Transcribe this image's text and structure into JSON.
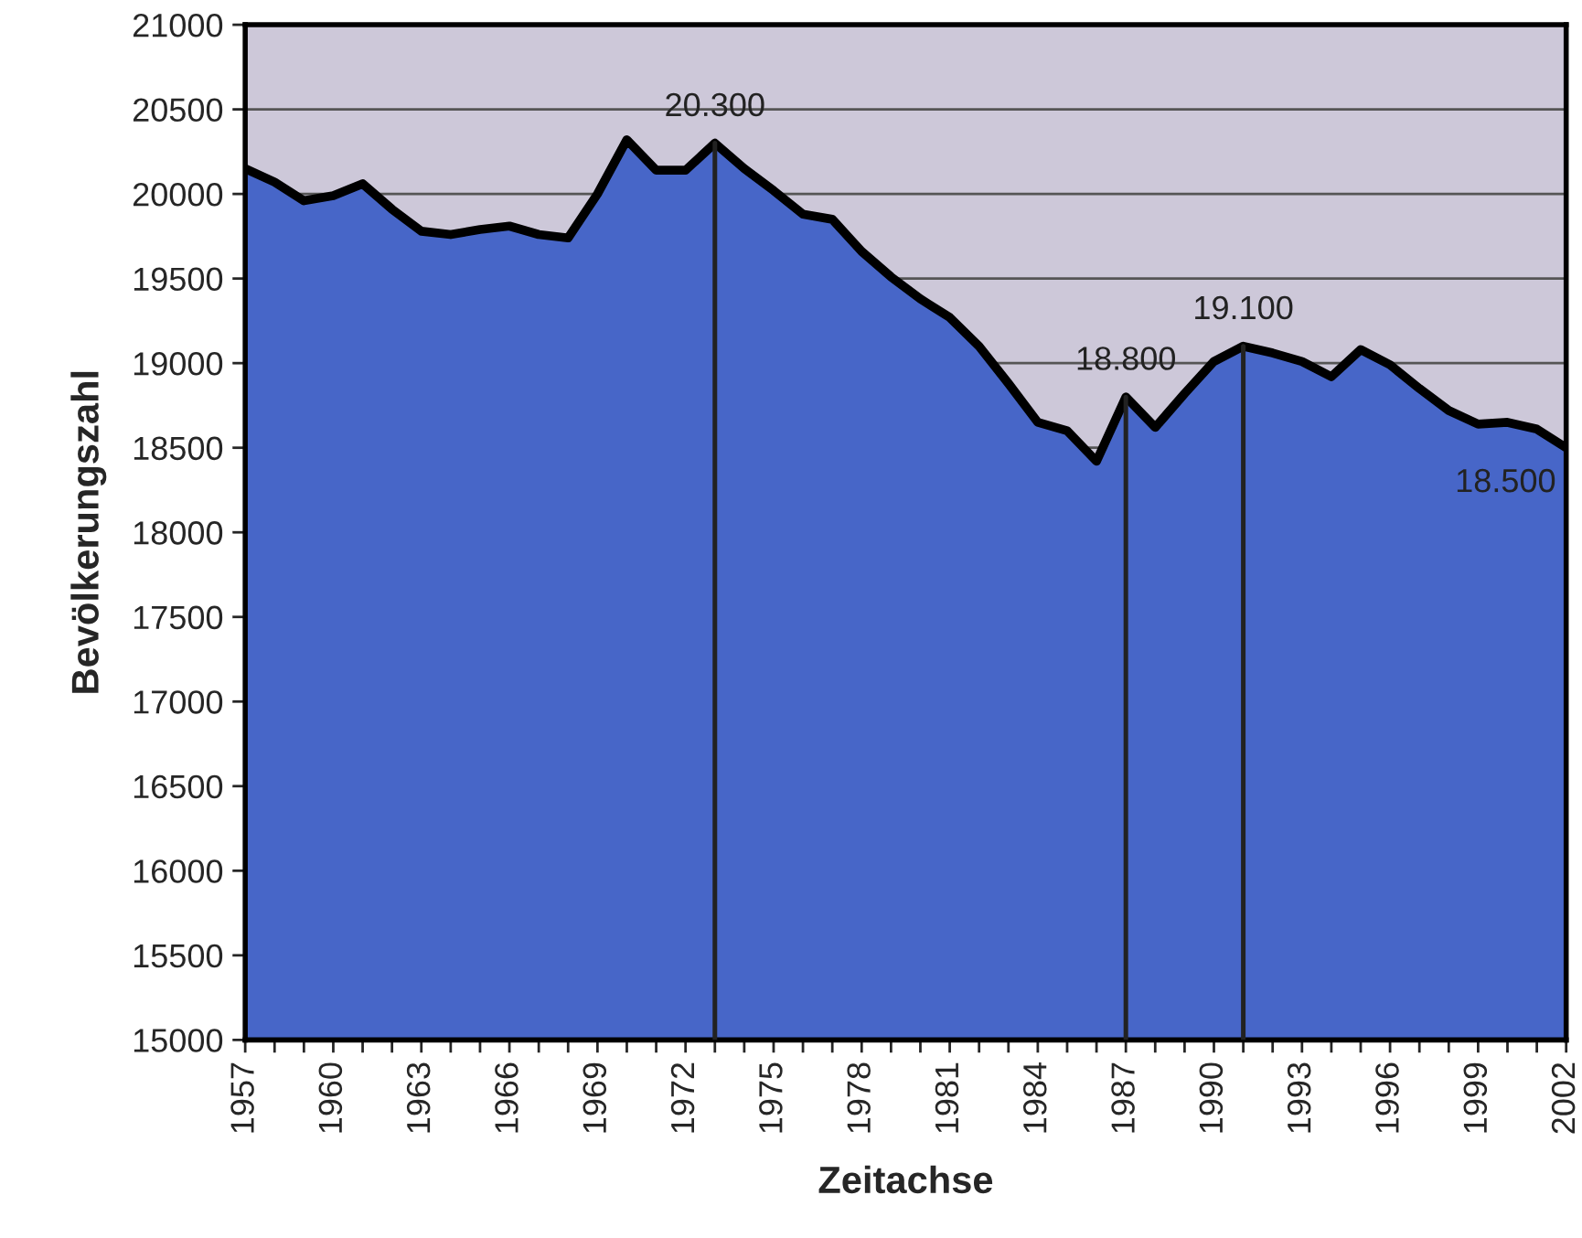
{
  "chart_data": {
    "type": "area",
    "xlabel": "Zeitachse",
    "ylabel": "Bevölkerungszahl",
    "x": [
      1957,
      1958,
      1959,
      1960,
      1961,
      1962,
      1963,
      1964,
      1965,
      1966,
      1967,
      1968,
      1969,
      1970,
      1971,
      1972,
      1973,
      1974,
      1975,
      1976,
      1977,
      1978,
      1979,
      1980,
      1981,
      1982,
      1983,
      1984,
      1985,
      1986,
      1987,
      1988,
      1989,
      1990,
      1991,
      1992,
      1993,
      1994,
      1995,
      1996,
      1997,
      1998,
      1999,
      2000,
      2001,
      2002
    ],
    "series": [
      {
        "color": "#4766c8",
        "values": [
          20150,
          20070,
          19960,
          19990,
          20060,
          19910,
          19780,
          19760,
          19790,
          19810,
          19760,
          19740,
          20000,
          20320,
          20140,
          20140,
          20300,
          20150,
          20020,
          19880,
          19850,
          19660,
          19510,
          19380,
          19270,
          19100,
          18880,
          18650,
          18600,
          18420,
          18800,
          18620,
          18820,
          19010,
          19100,
          19060,
          19010,
          18920,
          19080,
          18990,
          18850,
          18720,
          18640,
          18650,
          18610,
          18500
        ]
      }
    ],
    "xlim": [
      1957,
      2002
    ],
    "xticks": [
      1957,
      {
        "value": 1958,
        "label": null
      },
      {
        "value": 1959,
        "label": null
      },
      1960,
      {
        "value": 1961,
        "label": null
      },
      {
        "value": 1962,
        "label": null
      },
      1963,
      {
        "value": 1964,
        "label": null
      },
      {
        "value": 1965,
        "label": null
      },
      1966,
      {
        "value": 1967,
        "label": null
      },
      {
        "value": 1968,
        "label": null
      },
      1969,
      {
        "value": 1970,
        "label": null
      },
      {
        "value": 1971,
        "label": null
      },
      1972,
      {
        "value": 1973,
        "label": null
      },
      {
        "value": 1974,
        "label": null
      },
      1975,
      {
        "value": 1976,
        "label": null
      },
      {
        "value": 1977,
        "label": null
      },
      1978,
      {
        "value": 1979,
        "label": null
      },
      {
        "value": 1980,
        "label": null
      },
      1981,
      {
        "value": 1982,
        "label": null
      },
      {
        "value": 1983,
        "label": null
      },
      1984,
      {
        "value": 1985,
        "label": null
      },
      {
        "value": 1986,
        "label": null
      },
      1987,
      {
        "value": 1988,
        "label": null
      },
      {
        "value": 1989,
        "label": null
      },
      1990,
      {
        "value": 1991,
        "label": null
      },
      {
        "value": 1992,
        "label": null
      },
      1993,
      {
        "value": 1994,
        "label": null
      },
      {
        "value": 1995,
        "label": null
      },
      1996,
      {
        "value": 1997,
        "label": null
      },
      {
        "value": 1998,
        "label": null
      },
      1999,
      {
        "value": 2000,
        "label": null
      },
      {
        "value": 2001,
        "label": null
      },
      2002
    ],
    "ylim": [
      15000,
      21000
    ],
    "yticks": [
      15000,
      15500,
      16000,
      16500,
      17000,
      17500,
      18000,
      18500,
      19000,
      19500,
      20000,
      20500,
      21000
    ],
    "grid": "y",
    "ref_lines": [
      {
        "axis": "x",
        "value": 1973,
        "color": "#222222"
      },
      {
        "axis": "x",
        "value": 1987,
        "color": "#222222"
      },
      {
        "axis": "x",
        "value": 1991,
        "color": "#222222"
      }
    ],
    "annotations": [
      {
        "text": "20.300",
        "x": 1973,
        "y": 20300
      },
      {
        "text": "18.800",
        "x": 1987,
        "y": 18800
      },
      {
        "text": "19.100",
        "x": 1991,
        "y": 19100
      },
      {
        "text": "18.500",
        "x": 2002,
        "y": 18500
      }
    ]
  }
}
